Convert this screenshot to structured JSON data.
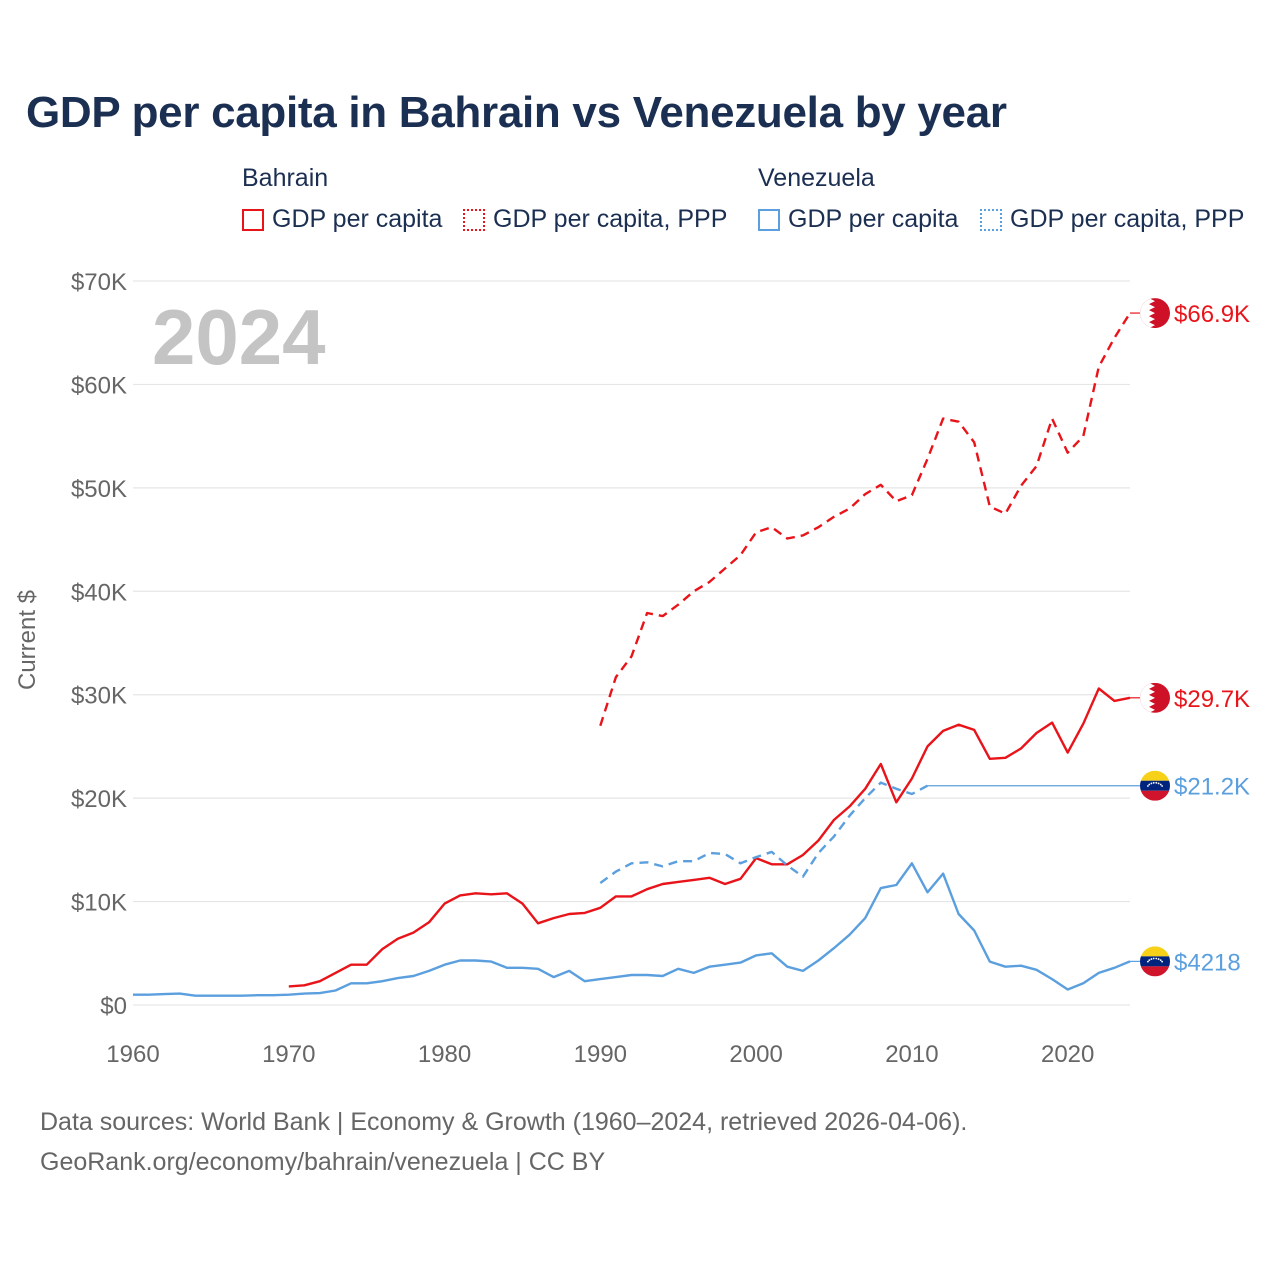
{
  "title": "GDP per capita in Bahrain vs Venezuela by year",
  "legend": {
    "bahrain": {
      "country": "Bahrain",
      "gdp": "GDP per capita",
      "ppp": "GDP per capita, PPP",
      "color": "#e8141a"
    },
    "venezuela": {
      "country": "Venezuela",
      "gdp": "GDP per capita",
      "ppp": "GDP per capita, PPP",
      "color": "#5b9fde"
    }
  },
  "year_label": "2024",
  "source_line1": "Data sources: World Bank | Economy & Growth (1960–2024, retrieved 2026-04-06).",
  "source_line2": "GeoRank.org/economy/bahrain/venezuela | CC BY",
  "chart_data": {
    "type": "line",
    "title": "GDP per capita in Bahrain vs Venezuela by year",
    "ylabel": "Current $",
    "xlabel": "",
    "xlim": [
      1960,
      2024
    ],
    "ylim": [
      0,
      70000
    ],
    "y_ticks": [
      0,
      10000,
      20000,
      30000,
      40000,
      50000,
      60000,
      70000
    ],
    "y_tick_labels": [
      "$0",
      "$10K",
      "$20K",
      "$30K",
      "$40K",
      "$50K",
      "$60K",
      "$70K"
    ],
    "x_ticks": [
      1960,
      1970,
      1980,
      1990,
      2000,
      2010,
      2020
    ],
    "x_tick_labels": [
      "1960",
      "1970",
      "1980",
      "1990",
      "2000",
      "2010",
      "2020"
    ],
    "grid": true,
    "series": [
      {
        "name": "Bahrain GDP per capita, PPP",
        "country": "Bahrain",
        "style": "dashed",
        "color": "#e8141a",
        "end_label": "$66.9K",
        "end_value": 66900,
        "points": [
          [
            1990,
            27000
          ],
          [
            1991,
            31700
          ],
          [
            1992,
            33700
          ],
          [
            1993,
            37900
          ],
          [
            1994,
            37600
          ],
          [
            1995,
            38700
          ],
          [
            1996,
            40000
          ],
          [
            1997,
            40900
          ],
          [
            1998,
            42200
          ],
          [
            1999,
            43500
          ],
          [
            2000,
            45700
          ],
          [
            2001,
            46200
          ],
          [
            2002,
            45100
          ],
          [
            2003,
            45400
          ],
          [
            2004,
            46200
          ],
          [
            2005,
            47200
          ],
          [
            2006,
            48000
          ],
          [
            2007,
            49400
          ],
          [
            2008,
            50300
          ],
          [
            2009,
            48700
          ],
          [
            2010,
            49300
          ],
          [
            2011,
            52800
          ],
          [
            2012,
            56700
          ],
          [
            2013,
            56400
          ],
          [
            2014,
            54400
          ],
          [
            2015,
            48200
          ],
          [
            2016,
            47500
          ],
          [
            2017,
            50200
          ],
          [
            2018,
            52100
          ],
          [
            2019,
            56700
          ],
          [
            2020,
            53400
          ],
          [
            2021,
            55000
          ],
          [
            2022,
            61700
          ],
          [
            2023,
            64500
          ],
          [
            2024,
            66900
          ]
        ]
      },
      {
        "name": "Bahrain GDP per capita",
        "country": "Bahrain",
        "style": "solid",
        "color": "#e8141a",
        "end_label": "$29.7K",
        "end_value": 29700,
        "points": [
          [
            1970,
            1800
          ],
          [
            1971,
            1900
          ],
          [
            1972,
            2300
          ],
          [
            1973,
            3100
          ],
          [
            1974,
            3900
          ],
          [
            1975,
            3900
          ],
          [
            1976,
            5400
          ],
          [
            1977,
            6400
          ],
          [
            1978,
            7000
          ],
          [
            1979,
            8000
          ],
          [
            1980,
            9800
          ],
          [
            1981,
            10600
          ],
          [
            1982,
            10800
          ],
          [
            1983,
            10700
          ],
          [
            1984,
            10800
          ],
          [
            1985,
            9800
          ],
          [
            1986,
            7900
          ],
          [
            1987,
            8400
          ],
          [
            1988,
            8800
          ],
          [
            1989,
            8900
          ],
          [
            1990,
            9400
          ],
          [
            1991,
            10500
          ],
          [
            1992,
            10500
          ],
          [
            1993,
            11200
          ],
          [
            1994,
            11700
          ],
          [
            1995,
            11900
          ],
          [
            1996,
            12100
          ],
          [
            1997,
            12300
          ],
          [
            1998,
            11700
          ],
          [
            1999,
            12200
          ],
          [
            2000,
            14200
          ],
          [
            2001,
            13600
          ],
          [
            2002,
            13600
          ],
          [
            2003,
            14500
          ],
          [
            2004,
            15900
          ],
          [
            2005,
            17900
          ],
          [
            2006,
            19200
          ],
          [
            2007,
            20900
          ],
          [
            2008,
            23300
          ],
          [
            2009,
            19600
          ],
          [
            2010,
            21900
          ],
          [
            2011,
            25000
          ],
          [
            2012,
            26500
          ],
          [
            2013,
            27100
          ],
          [
            2014,
            26600
          ],
          [
            2015,
            23800
          ],
          [
            2016,
            23900
          ],
          [
            2017,
            24800
          ],
          [
            2018,
            26300
          ],
          [
            2019,
            27300
          ],
          [
            2020,
            24400
          ],
          [
            2021,
            27200
          ],
          [
            2022,
            30600
          ],
          [
            2023,
            29400
          ],
          [
            2024,
            29700
          ]
        ]
      },
      {
        "name": "Venezuela GDP per capita, PPP",
        "country": "Venezuela",
        "style": "dashed",
        "color": "#5b9fde",
        "end_label": "$21.2K",
        "end_value": 21200,
        "points": [
          [
            1990,
            11800
          ],
          [
            1991,
            12900
          ],
          [
            1992,
            13700
          ],
          [
            1993,
            13800
          ],
          [
            1994,
            13400
          ],
          [
            1995,
            13900
          ],
          [
            1996,
            13900
          ],
          [
            1997,
            14700
          ],
          [
            1998,
            14600
          ],
          [
            1999,
            13700
          ],
          [
            2000,
            14300
          ],
          [
            2001,
            14800
          ],
          [
            2002,
            13500
          ],
          [
            2003,
            12400
          ],
          [
            2004,
            14700
          ],
          [
            2005,
            16300
          ],
          [
            2006,
            18300
          ],
          [
            2007,
            20000
          ],
          [
            2008,
            21500
          ],
          [
            2009,
            20900
          ],
          [
            2010,
            20400
          ],
          [
            2011,
            21200
          ]
        ],
        "flat_extension_to": 2024
      },
      {
        "name": "Venezuela GDP per capita",
        "country": "Venezuela",
        "style": "solid",
        "color": "#5b9fde",
        "end_label": "$4218",
        "end_value": 4218,
        "points": [
          [
            1960,
            1000
          ],
          [
            1961,
            1000
          ],
          [
            1962,
            1050
          ],
          [
            1963,
            1100
          ],
          [
            1964,
            900
          ],
          [
            1965,
            900
          ],
          [
            1966,
            900
          ],
          [
            1967,
            900
          ],
          [
            1968,
            950
          ],
          [
            1969,
            950
          ],
          [
            1970,
            1000
          ],
          [
            1971,
            1100
          ],
          [
            1972,
            1150
          ],
          [
            1973,
            1400
          ],
          [
            1974,
            2100
          ],
          [
            1975,
            2100
          ],
          [
            1976,
            2300
          ],
          [
            1977,
            2600
          ],
          [
            1978,
            2800
          ],
          [
            1979,
            3300
          ],
          [
            1980,
            3900
          ],
          [
            1981,
            4300
          ],
          [
            1982,
            4300
          ],
          [
            1983,
            4200
          ],
          [
            1984,
            3600
          ],
          [
            1985,
            3600
          ],
          [
            1986,
            3500
          ],
          [
            1987,
            2700
          ],
          [
            1988,
            3300
          ],
          [
            1989,
            2300
          ],
          [
            1990,
            2500
          ],
          [
            1991,
            2700
          ],
          [
            1992,
            2900
          ],
          [
            1993,
            2900
          ],
          [
            1994,
            2800
          ],
          [
            1995,
            3500
          ],
          [
            1996,
            3100
          ],
          [
            1997,
            3700
          ],
          [
            1998,
            3900
          ],
          [
            1999,
            4100
          ],
          [
            2000,
            4800
          ],
          [
            2001,
            5000
          ],
          [
            2002,
            3700
          ],
          [
            2003,
            3300
          ],
          [
            2004,
            4300
          ],
          [
            2005,
            5500
          ],
          [
            2006,
            6800
          ],
          [
            2007,
            8400
          ],
          [
            2008,
            11300
          ],
          [
            2009,
            11600
          ],
          [
            2010,
            13700
          ],
          [
            2011,
            10900
          ],
          [
            2012,
            12700
          ],
          [
            2013,
            8800
          ],
          [
            2014,
            7200
          ],
          [
            2015,
            4200
          ],
          [
            2016,
            3700
          ],
          [
            2017,
            3800
          ],
          [
            2018,
            3400
          ],
          [
            2019,
            2500
          ],
          [
            2020,
            1500
          ],
          [
            2021,
            2100
          ],
          [
            2022,
            3100
          ],
          [
            2023,
            3600
          ],
          [
            2024,
            4218
          ]
        ]
      }
    ]
  }
}
